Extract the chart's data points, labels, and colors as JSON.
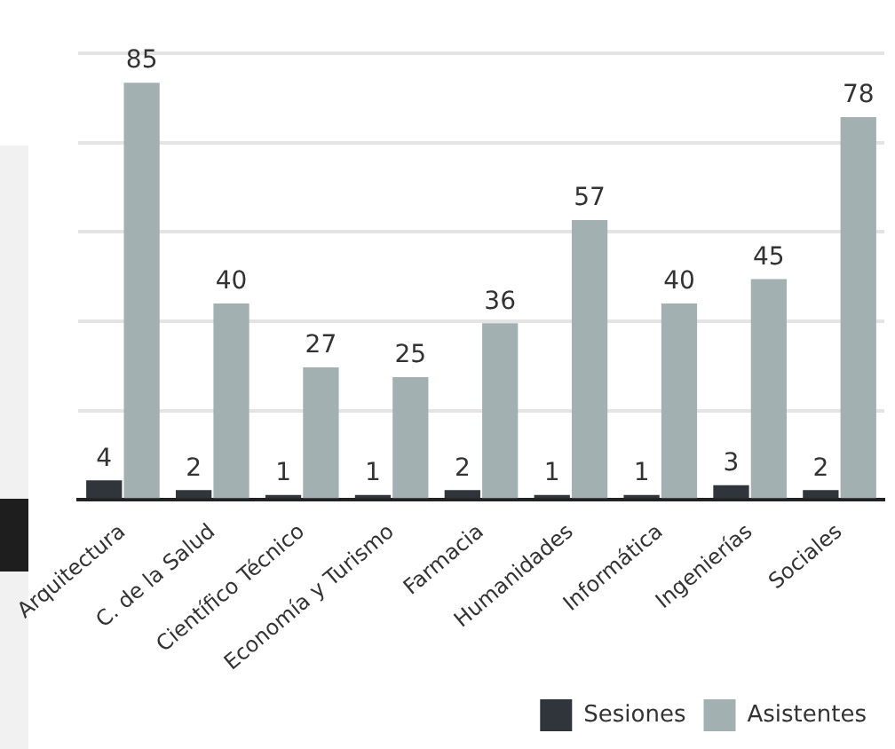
{
  "chart_data": {
    "type": "bar",
    "categories": [
      "Arquitectura",
      "C. de la Salud",
      "Científico Técnico",
      "Economía y Turismo",
      "Farmacia",
      "Humanidades",
      "Informática",
      "Ingenierías",
      "Sociales"
    ],
    "series": [
      {
        "name": "Sesiones",
        "color": "#2f353b",
        "values": [
          4,
          2,
          1,
          1,
          2,
          1,
          1,
          3,
          2
        ]
      },
      {
        "name": "Asistentes",
        "color": "#a3b0b2",
        "values": [
          85,
          40,
          27,
          25,
          36,
          57,
          40,
          45,
          78
        ]
      }
    ],
    "ylim": [
      0,
      91
    ],
    "yticks": [
      {
        "value": 0,
        "label": null
      },
      {
        "value": 18.2,
        "label": null
      },
      {
        "value": 36.4,
        "label": null
      },
      {
        "value": 54.6,
        "label": null
      },
      {
        "value": 72.8,
        "label": null
      },
      {
        "value": 91,
        "label": null
      }
    ],
    "tick_labels": "x",
    "grid": "y",
    "legend": "bottom right",
    "data_labels": true
  }
}
